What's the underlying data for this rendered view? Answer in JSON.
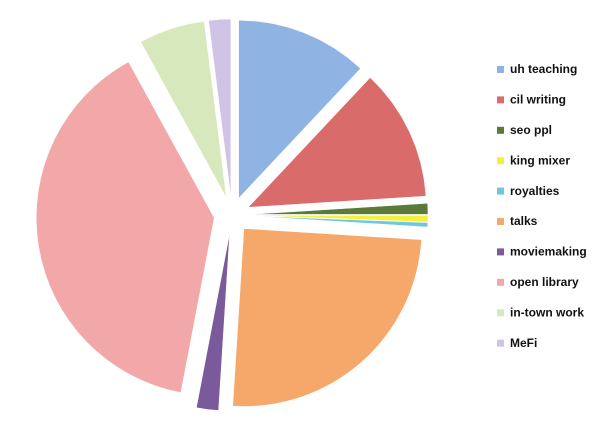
{
  "chart_data": {
    "type": "pie",
    "categories": [
      "uh teaching",
      "cil writing",
      "seo ppl",
      "king mixer",
      "royalties",
      "talks",
      "moviemaking",
      "open library",
      "in-town work",
      "MeFi"
    ],
    "values": [
      12,
      12,
      1,
      0.6,
      0.4,
      25,
      2,
      39,
      6,
      2
    ],
    "colors": [
      "#8fb4e3",
      "#d96b6b",
      "#5b7a3a",
      "#f2f23c",
      "#6fc6e0",
      "#f5a86a",
      "#7a5a9a",
      "#f2a8a8",
      "#d6e8bc",
      "#cfc3e6"
    ],
    "legend": "right"
  }
}
